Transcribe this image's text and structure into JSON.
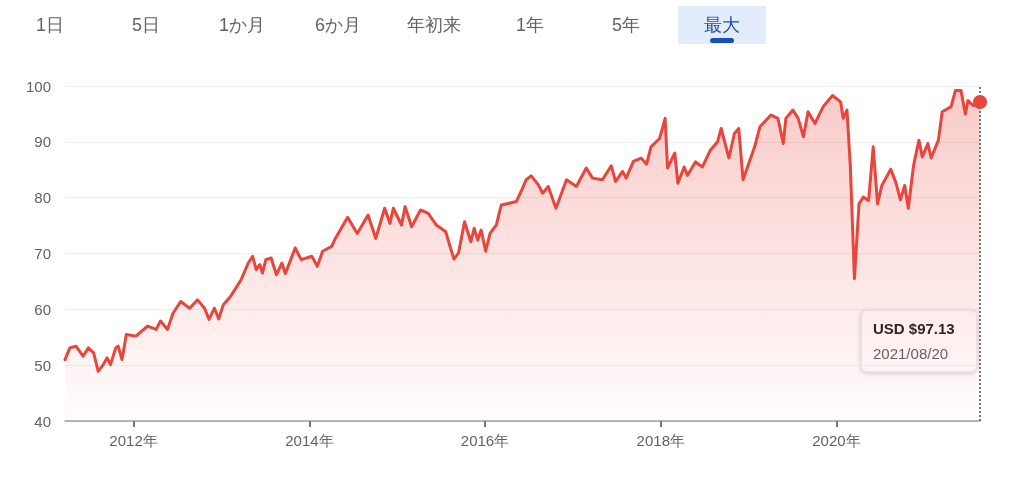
{
  "chart_data": {
    "type": "area",
    "annotations": [
      "1日",
      "5日",
      "1か月",
      "6か月",
      "年初来",
      "1年",
      "5年",
      "最大",
      "USD $97.13",
      "2021/08/20"
    ],
    "x": [
      "2011-03-22",
      "2011-04-11",
      "2011-05-07",
      "2011-06-05",
      "2011-06-27",
      "2011-07-19",
      "2011-08-07",
      "2011-08-28",
      "2011-09-13",
      "2011-09-27",
      "2011-10-19",
      "2011-10-29",
      "2011-11-14",
      "2011-12-02",
      "2012-01-11",
      "2012-02-28",
      "2012-04-04",
      "2012-04-22",
      "2012-05-21",
      "2012-06-13",
      "2012-07-15",
      "2012-08-21",
      "2012-09-23",
      "2012-10-22",
      "2012-11-10",
      "2012-12-02",
      "2012-12-20",
      "2013-01-08",
      "2013-02-07",
      "2013-03-23",
      "2013-04-22",
      "2013-05-10",
      "2013-05-25",
      "2013-06-09",
      "2013-06-20",
      "2013-07-04",
      "2013-07-26",
      "2013-08-17",
      "2013-09-09",
      "2013-09-23",
      "2013-11-03",
      "2013-11-28",
      "2014-01-11",
      "2014-02-03",
      "2014-02-25",
      "2014-04-04",
      "2014-04-19",
      "2014-05-17",
      "2014-06-09",
      "2014-07-19",
      "2014-09-02",
      "2014-10-04",
      "2014-11-10",
      "2014-12-02",
      "2014-12-16",
      "2015-01-19",
      "2015-02-03",
      "2015-03-02",
      "2015-04-08",
      "2015-05-10",
      "2015-06-13",
      "2015-07-22",
      "2015-08-07",
      "2015-08-25",
      "2015-09-13",
      "2015-10-08",
      "2015-11-03",
      "2015-11-17",
      "2015-12-02",
      "2015-12-16",
      "2016-01-04",
      "2016-01-22",
      "2016-02-17",
      "2016-03-09",
      "2016-04-11",
      "2016-05-10",
      "2016-06-02",
      "2016-06-20",
      "2016-07-11",
      "2016-08-10",
      "2016-08-28",
      "2016-09-20",
      "2016-10-22",
      "2016-12-05",
      "2017-01-15",
      "2017-02-25",
      "2017-03-23",
      "2017-05-03",
      "2017-06-09",
      "2017-06-27",
      "2017-07-26",
      "2017-08-10",
      "2017-09-09",
      "2017-10-11",
      "2017-11-03",
      "2017-11-21",
      "2017-12-27",
      "2018-01-19",
      "2018-01-29",
      "2018-02-28",
      "2018-03-13",
      "2018-04-08",
      "2018-04-22",
      "2018-05-25",
      "2018-06-23",
      "2018-07-26",
      "2018-08-25",
      "2018-09-09",
      "2018-10-11",
      "2018-11-03",
      "2018-11-21",
      "2018-12-09",
      "2019-01-26",
      "2019-02-17",
      "2019-04-04",
      "2019-05-03",
      "2019-05-25",
      "2019-06-05",
      "2019-07-04",
      "2019-07-26",
      "2019-08-17",
      "2019-09-05",
      "2019-10-04",
      "2019-11-07",
      "2019-12-16",
      "2020-01-19",
      "2020-01-29",
      "2020-02-14",
      "2020-02-28",
      "2020-03-16",
      "2020-04-04",
      "2020-04-22",
      "2020-05-14",
      "2020-06-02",
      "2020-06-20",
      "2020-07-08",
      "2020-08-14",
      "2020-09-05",
      "2020-09-23",
      "2020-10-11",
      "2020-10-26",
      "2020-11-17",
      "2020-12-09",
      "2020-12-23",
      "2021-01-15",
      "2021-01-29",
      "2021-02-28",
      "2021-03-16",
      "2021-04-22",
      "2021-05-10",
      "2021-06-02",
      "2021-06-20",
      "2021-07-01",
      "2021-07-22",
      "2021-08-20"
    ],
    "series": [
      {
        "color": "#e8453c",
        "values": [
          51.0,
          53.1,
          53.4,
          51.6,
          53.1,
          52.2,
          48.9,
          50.1,
          51.3,
          50.1,
          53.1,
          53.4,
          51.0,
          55.5,
          55.2,
          57.0,
          56.4,
          57.9,
          56.4,
          59.3,
          61.4,
          60.2,
          61.7,
          60.2,
          58.2,
          60.2,
          58.3,
          60.8,
          62.3,
          65.3,
          68.3,
          69.5,
          67.1,
          68.0,
          66.5,
          68.9,
          69.2,
          66.2,
          68.3,
          66.4,
          71.0,
          68.9,
          69.5,
          67.7,
          70.4,
          71.3,
          72.7,
          74.8,
          76.5,
          73.6,
          76.9,
          72.7,
          78.1,
          75.4,
          78.1,
          75.1,
          78.4,
          74.8,
          77.8,
          77.2,
          75.1,
          73.9,
          71.5,
          69.0,
          70.1,
          75.7,
          72.1,
          74.5,
          72.4,
          74.2,
          70.4,
          73.6,
          75.1,
          78.7,
          79.0,
          79.3,
          81.4,
          83.2,
          83.9,
          82.3,
          80.8,
          82.0,
          78.1,
          83.2,
          82.0,
          85.3,
          83.5,
          83.2,
          85.7,
          82.9,
          84.7,
          83.5,
          86.5,
          87.1,
          86.0,
          89.1,
          90.6,
          94.2,
          85.3,
          88.0,
          82.6,
          85.5,
          84.0,
          86.4,
          85.5,
          88.5,
          90.0,
          92.4,
          87.1,
          91.5,
          92.4,
          83.2,
          89.1,
          92.7,
          94.8,
          94.2,
          89.7,
          94.2,
          95.7,
          94.2,
          90.9,
          95.4,
          93.3,
          96.3,
          98.3,
          97.1,
          94.2,
          95.7,
          85.5,
          65.5,
          78.9,
          80.1,
          79.5,
          89.1,
          78.9,
          82.2,
          85.1,
          82.6,
          79.6,
          82.2,
          78.1,
          85.8,
          90.3,
          87.3,
          89.7,
          87.1,
          90.3,
          95.4,
          96.3,
          99.2,
          99.2,
          95.0,
          97.4,
          96.5,
          97.13
        ]
      }
    ],
    "xlim": [
      "2011-03-22",
      "2021-08-20"
    ],
    "xticks": [
      {
        "value": "2012-01-01",
        "label": "2012年"
      },
      {
        "value": "2014-01-01",
        "label": "2014年"
      },
      {
        "value": "2016-01-01",
        "label": "2016年"
      },
      {
        "value": "2018-01-01",
        "label": "2018年"
      },
      {
        "value": "2020-01-01",
        "label": "2020年"
      }
    ],
    "ylim": [
      40,
      100
    ],
    "yticks": [
      40,
      50,
      60,
      70,
      80,
      90,
      100
    ],
    "grid": "y",
    "marker": "none",
    "line_style": "solid",
    "ref_lines": [
      {
        "axis": "x",
        "value": "2021-08-20",
        "color": "#757575",
        "line_style": "dotted"
      }
    ]
  }
}
